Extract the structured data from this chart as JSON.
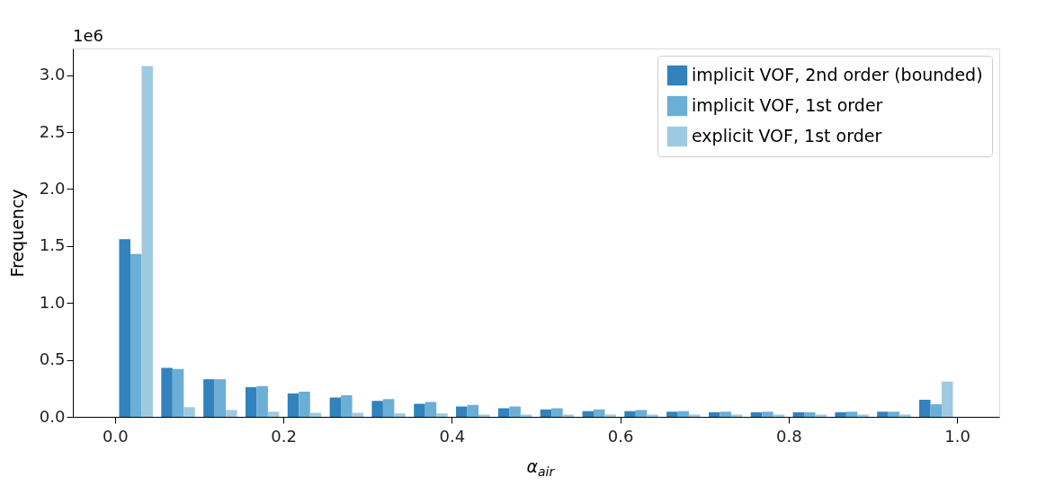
{
  "chart_data": {
    "type": "histogram",
    "xlabel": "α$_{air}$",
    "ylabel": "Frequency",
    "annotations": [
      "1e6"
    ],
    "bins": [
      0.0,
      0.05,
      0.1,
      0.15,
      0.2,
      0.25,
      0.3,
      0.35,
      0.4,
      0.45,
      0.5,
      0.55,
      0.6,
      0.65,
      0.7,
      0.75,
      0.8,
      0.85,
      0.9,
      0.95,
      1.0
    ],
    "series": [
      {
        "name": "implicit VOF, 2nd order (bounded)",
        "color": "#3182bd",
        "values": [
          1.56,
          0.43,
          0.33,
          0.26,
          0.205,
          0.17,
          0.14,
          0.115,
          0.09,
          0.075,
          0.065,
          0.05,
          0.05,
          0.045,
          0.04,
          0.04,
          0.04,
          0.04,
          0.045,
          0.15
        ]
      },
      {
        "name": "implicit VOF, 1st order",
        "color": "#6baed6",
        "values": [
          1.43,
          0.42,
          0.33,
          0.27,
          0.22,
          0.19,
          0.155,
          0.13,
          0.105,
          0.09,
          0.075,
          0.065,
          0.06,
          0.05,
          0.045,
          0.045,
          0.04,
          0.045,
          0.045,
          0.11
        ]
      },
      {
        "name": "explicit VOF, 1st order",
        "color": "#9ecae1",
        "values": [
          3.08,
          0.085,
          0.06,
          0.045,
          0.035,
          0.035,
          0.03,
          0.03,
          0.02,
          0.02,
          0.02,
          0.02,
          0.02,
          0.02,
          0.02,
          0.02,
          0.02,
          0.02,
          0.02,
          0.31
        ]
      }
    ],
    "xlim": [
      -0.05,
      1.05
    ],
    "ylim": [
      0,
      3.234
    ],
    "xticks": [
      {
        "value": 0,
        "label": "0.0"
      },
      {
        "value": 0.2,
        "label": "0.2"
      },
      {
        "value": 0.4,
        "label": "0.4"
      },
      {
        "value": 0.6,
        "label": "0.6"
      },
      {
        "value": 0.8,
        "label": "0.8"
      },
      {
        "value": 1,
        "label": "1.0"
      }
    ],
    "yticks": [
      {
        "value": 0,
        "label": "0.0"
      },
      {
        "value": 0.5,
        "label": "0.5"
      },
      {
        "value": 1,
        "label": "1.0"
      },
      {
        "value": 1.5,
        "label": "1.5"
      },
      {
        "value": 2,
        "label": "2.0"
      },
      {
        "value": 2.5,
        "label": "2.5"
      },
      {
        "value": 3,
        "label": "3.0"
      }
    ],
    "grid": false,
    "legend": "top right"
  }
}
